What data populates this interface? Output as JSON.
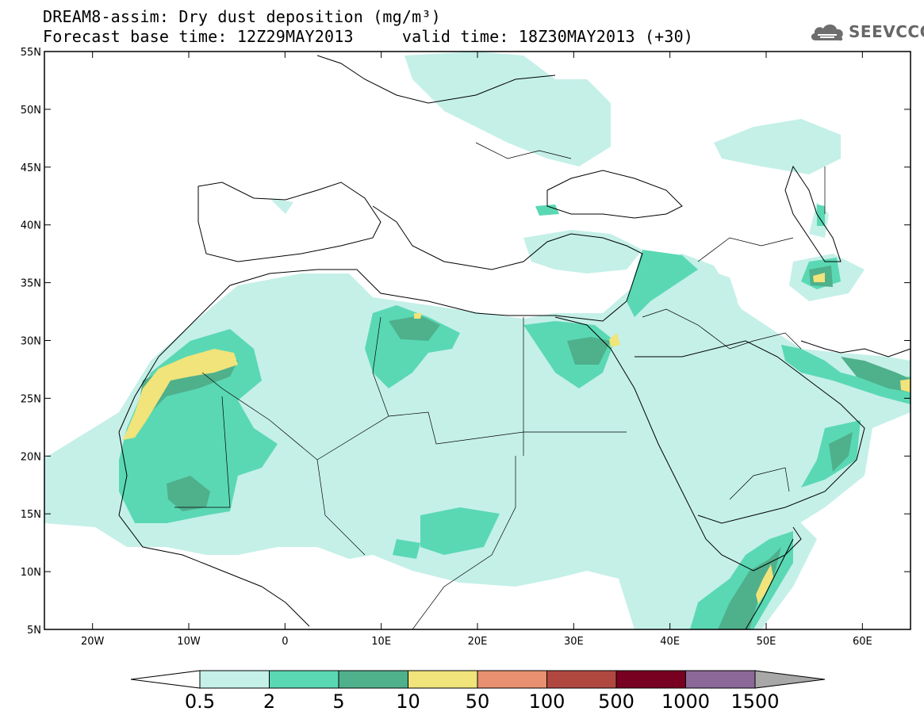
{
  "header": {
    "title_line1": "DREAM8-assim: Dry dust deposition (mg/m³)",
    "title_line2": "Forecast base time: 12Z29MAY2013     valid time: 18Z30MAY2013 (+30)"
  },
  "logo": {
    "text": "SEEVCCC",
    "icon": "cloud-icon"
  },
  "map": {
    "lon_range": [
      -25,
      65
    ],
    "lat_range": [
      5,
      55
    ],
    "lat_ticks": [
      {
        "value": 55,
        "label": "55N"
      },
      {
        "value": 50,
        "label": "50N"
      },
      {
        "value": 45,
        "label": "45N"
      },
      {
        "value": 40,
        "label": "40N"
      },
      {
        "value": 35,
        "label": "35N"
      },
      {
        "value": 30,
        "label": "30N"
      },
      {
        "value": 25,
        "label": "25N"
      },
      {
        "value": 20,
        "label": "20N"
      },
      {
        "value": 15,
        "label": "15N"
      },
      {
        "value": 10,
        "label": "10N"
      },
      {
        "value": 5,
        "label": "5N"
      }
    ],
    "lon_ticks": [
      {
        "value": -20,
        "label": "20W"
      },
      {
        "value": -10,
        "label": "10W"
      },
      {
        "value": 0,
        "label": "0"
      },
      {
        "value": 10,
        "label": "10E"
      },
      {
        "value": 20,
        "label": "20E"
      },
      {
        "value": 30,
        "label": "30E"
      },
      {
        "value": 40,
        "label": "40E"
      },
      {
        "value": 50,
        "label": "50E"
      },
      {
        "value": 60,
        "label": "60E"
      }
    ]
  },
  "colorbar": {
    "colors": [
      "#c4f0e8",
      "#5ad8b4",
      "#4fb08c",
      "#f0e47a",
      "#e89070",
      "#b04840",
      "#780020",
      "#8c6898"
    ],
    "over_color": "#a8a8a8",
    "under_color": "#ffffff",
    "labels": [
      "0.5",
      "2",
      "5",
      "10",
      "50",
      "100",
      "500",
      "1000",
      "1500"
    ]
  }
}
